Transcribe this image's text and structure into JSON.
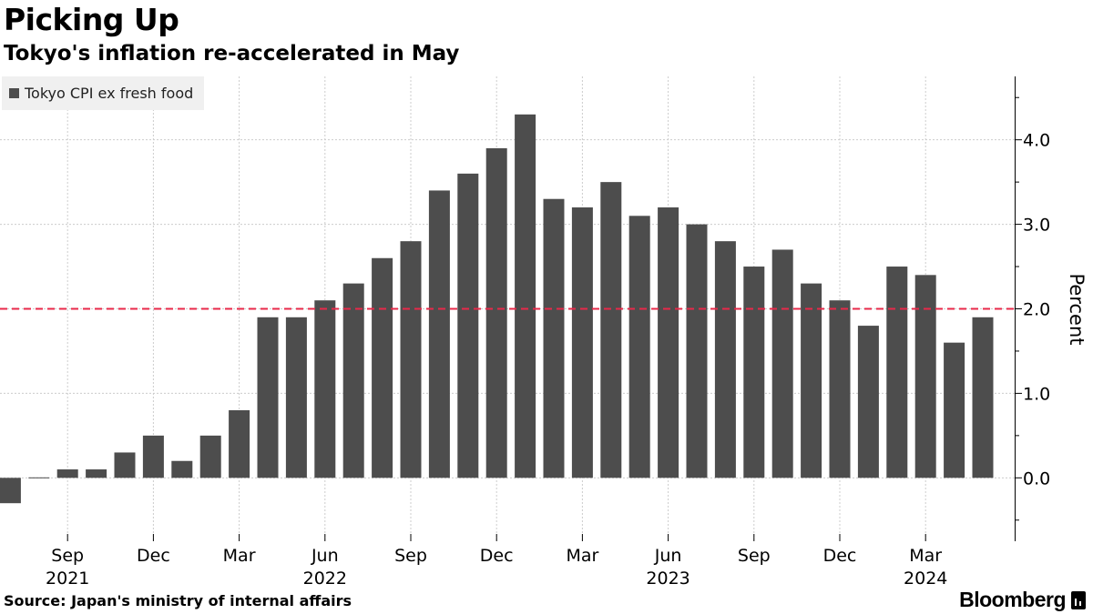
{
  "header": {
    "title": "Picking Up",
    "subtitle": "Tokyo's inflation re-accelerated in May"
  },
  "legend": {
    "label": "Tokyo CPI ex fresh food"
  },
  "footer": {
    "source": "Source: Japan's ministry of internal affairs",
    "brand": "Bloomberg"
  },
  "colors": {
    "bar": "#4d4d4d",
    "reference_line": "#e8294a",
    "grid": "#cccccc",
    "axis": "#000000"
  },
  "chart_data": {
    "type": "bar",
    "title": "Picking Up",
    "subtitle": "Tokyo's inflation re-accelerated in May",
    "ylabel": "Percent",
    "xlabel": "",
    "ylim": [
      -0.75,
      4.75
    ],
    "yticks": [
      0.0,
      1.0,
      2.0,
      3.0,
      4.0
    ],
    "ytick_labels": [
      "0.0",
      "1.0",
      "2.0",
      "3.0",
      "4.0"
    ],
    "grid": true,
    "legend_position": "top-left",
    "reference_line": {
      "value": 2.0,
      "style": "dashed"
    },
    "series": [
      {
        "name": "Tokyo CPI ex fresh food",
        "categories": [
          "2021-07",
          "2021-08",
          "2021-09",
          "2021-10",
          "2021-11",
          "2021-12",
          "2022-01",
          "2022-02",
          "2022-03",
          "2022-04",
          "2022-05",
          "2022-06",
          "2022-07",
          "2022-08",
          "2022-09",
          "2022-10",
          "2022-11",
          "2022-12",
          "2023-01",
          "2023-02",
          "2023-03",
          "2023-04",
          "2023-05",
          "2023-06",
          "2023-07",
          "2023-08",
          "2023-09",
          "2023-10",
          "2023-11",
          "2023-12",
          "2024-01",
          "2024-02",
          "2024-03",
          "2024-04",
          "2024-05"
        ],
        "values": [
          -0.3,
          0.0,
          0.1,
          0.1,
          0.3,
          0.5,
          0.2,
          0.5,
          0.8,
          1.9,
          1.9,
          2.1,
          2.3,
          2.6,
          2.8,
          3.4,
          3.6,
          3.9,
          4.3,
          3.3,
          3.2,
          3.5,
          3.1,
          3.2,
          3.0,
          2.8,
          2.5,
          2.7,
          2.3,
          2.1,
          1.8,
          2.5,
          2.4,
          1.6,
          1.9
        ]
      }
    ],
    "x_ticks": [
      {
        "month": "Sep",
        "year": "2021",
        "index": 2
      },
      {
        "month": "Dec",
        "year": "",
        "index": 5
      },
      {
        "month": "Mar",
        "year": "",
        "index": 8
      },
      {
        "month": "Jun",
        "year": "2022",
        "index": 11
      },
      {
        "month": "Sep",
        "year": "",
        "index": 14
      },
      {
        "month": "Dec",
        "year": "",
        "index": 17
      },
      {
        "month": "Mar",
        "year": "",
        "index": 20
      },
      {
        "month": "Jun",
        "year": "2023",
        "index": 23
      },
      {
        "month": "Sep",
        "year": "",
        "index": 26
      },
      {
        "month": "Dec",
        "year": "",
        "index": 29
      },
      {
        "month": "Mar",
        "year": "2024",
        "index": 32
      }
    ]
  }
}
